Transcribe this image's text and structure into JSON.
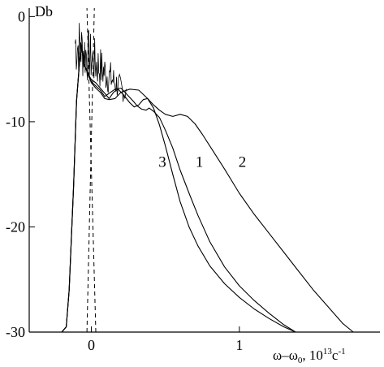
{
  "chart_data": {
    "type": "line",
    "title": "",
    "ylabel": "Db",
    "xlabel_main": "ω–ω",
    "xlabel_sub": "0",
    "xlabel_unit": ", 10",
    "xlabel_exp": "13",
    "xlabel_unit2": "c",
    "xlabel_exp2": "-1",
    "xlim": [
      -0.42,
      1.95
    ],
    "ylim": [
      -30,
      0.8
    ],
    "x_ticks": [
      {
        "value": 0,
        "label": "0"
      },
      {
        "value": 1,
        "label": "1"
      }
    ],
    "y_ticks": [
      {
        "value": 0,
        "label": "0"
      },
      {
        "value": -10,
        "label": "-10"
      },
      {
        "value": -20,
        "label": "-20"
      },
      {
        "value": -30,
        "label": "-30"
      }
    ],
    "grid": false,
    "dashed_lines": [
      {
        "x_bottom": -0.03,
        "x_top": 0.02
      },
      {
        "x_bottom": 0.03,
        "x_top": -0.03
      }
    ],
    "series": [
      {
        "name": "1",
        "label_at": [
          0.73,
          -14.3
        ],
        "x": [
          -0.2,
          -0.17,
          -0.15,
          -0.12,
          -0.1,
          -0.07,
          -0.05,
          -0.02,
          0.0,
          0.03,
          0.06,
          0.09,
          0.12,
          0.16,
          0.2,
          0.24,
          0.28,
          0.31,
          0.34,
          0.37,
          0.39,
          0.42,
          0.46,
          0.5,
          0.55,
          0.6,
          0.66,
          0.72,
          0.8,
          0.9,
          1.0,
          1.1,
          1.2,
          1.3,
          1.38
        ],
        "y": [
          -30,
          -29.5,
          -26,
          -16,
          -8,
          -2.5,
          -4.5,
          -5.5,
          -6.2,
          -6.6,
          -7.0,
          -7.6,
          -7.3,
          -6.9,
          -6.8,
          -7.4,
          -8.0,
          -8.5,
          -8.8,
          -8.9,
          -8.7,
          -9.0,
          -9.6,
          -10.8,
          -12.5,
          -14.6,
          -16.8,
          -18.9,
          -21.4,
          -23.8,
          -25.6,
          -27.0,
          -28.2,
          -29.3,
          -30
        ]
      },
      {
        "name": "2",
        "label_at": [
          1.02,
          -14.3
        ],
        "x": [
          -0.2,
          -0.17,
          -0.15,
          -0.12,
          -0.1,
          -0.07,
          -0.05,
          -0.02,
          0.0,
          0.03,
          0.06,
          0.09,
          0.12,
          0.16,
          0.2,
          0.26,
          0.32,
          0.38,
          0.42,
          0.46,
          0.5,
          0.55,
          0.6,
          0.65,
          0.7,
          0.75,
          0.8,
          0.9,
          1.0,
          1.1,
          1.2,
          1.3,
          1.4,
          1.5,
          1.6,
          1.7,
          1.77
        ],
        "y": [
          -30,
          -29.5,
          -26,
          -16,
          -8,
          -2.5,
          -4.5,
          -5.6,
          -6.3,
          -6.8,
          -7.2,
          -7.8,
          -7.9,
          -7.8,
          -7.2,
          -6.9,
          -7.0,
          -7.8,
          -8.4,
          -8.9,
          -9.3,
          -9.5,
          -9.3,
          -9.5,
          -10.2,
          -11.2,
          -12.3,
          -14.5,
          -16.8,
          -18.8,
          -20.6,
          -22.4,
          -24.2,
          -26.0,
          -27.6,
          -29.2,
          -30
        ]
      },
      {
        "name": "3",
        "label_at": [
          0.48,
          -14.3
        ],
        "x": [
          -0.2,
          -0.17,
          -0.15,
          -0.12,
          -0.1,
          -0.07,
          -0.05,
          -0.02,
          0.0,
          0.03,
          0.06,
          0.09,
          0.12,
          0.15,
          0.18,
          0.22,
          0.26,
          0.29,
          0.32,
          0.35,
          0.38,
          0.42,
          0.46,
          0.5,
          0.55,
          0.6,
          0.66,
          0.72,
          0.8,
          0.9,
          1.0,
          1.1,
          1.2,
          1.3,
          1.38
        ],
        "y": [
          -30,
          -29.5,
          -26,
          -16,
          -8,
          -2.5,
          -4.5,
          -5.5,
          -6.0,
          -6.3,
          -6.8,
          -7.3,
          -7.8,
          -7.2,
          -6.9,
          -7.5,
          -8.2,
          -8.6,
          -8.4,
          -7.9,
          -7.8,
          -8.7,
          -10.3,
          -12.3,
          -15.0,
          -17.6,
          -20.0,
          -21.8,
          -23.7,
          -25.4,
          -26.7,
          -27.8,
          -28.7,
          -29.5,
          -30
        ]
      }
    ]
  }
}
